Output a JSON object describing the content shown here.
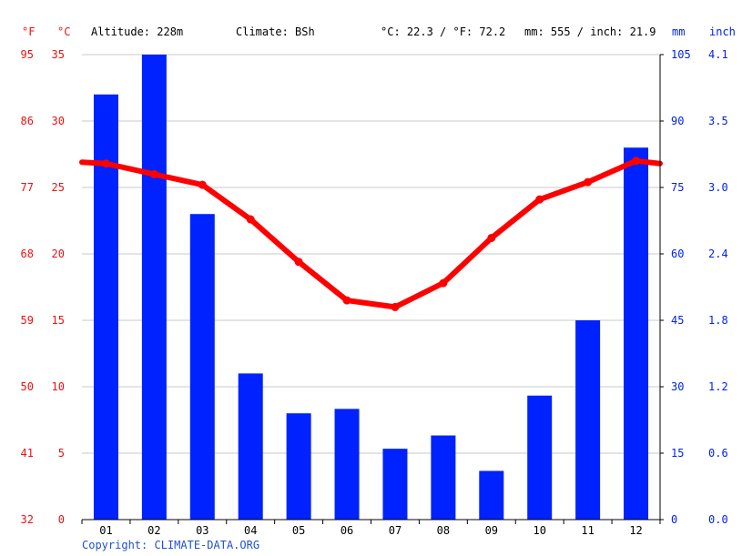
{
  "header": {
    "unit_f": "°F",
    "unit_c": "°C",
    "altitude": "Altitude: 228m",
    "climate": "Climate: BSh",
    "temp_avg": "°C: 22.3 / °F: 72.2",
    "precip_total": "mm: 555 / inch: 21.9",
    "unit_mm": "mm",
    "unit_inch": "inch"
  },
  "footer": {
    "copyright": "Copyright: CLIMATE-DATA.ORG"
  },
  "colors": {
    "temperature": "#ff0000",
    "precipitation": "#0022ff",
    "grid": "#c8c8c8",
    "left_axis_text": "#ee1111",
    "right_axis_text": "#0022ee"
  },
  "chart_data": {
    "type": "bar+line",
    "categories": [
      "01",
      "02",
      "03",
      "04",
      "05",
      "06",
      "07",
      "08",
      "09",
      "10",
      "11",
      "12"
    ],
    "series": [
      {
        "name": "Precipitation (mm)",
        "type": "bar",
        "axis": "right",
        "values": [
          96,
          105,
          69,
          33,
          24,
          25,
          16,
          19,
          11,
          28,
          45,
          84
        ]
      },
      {
        "name": "Temperature (°C)",
        "type": "line",
        "axis": "left",
        "values": [
          26.8,
          26.0,
          25.2,
          22.6,
          19.4,
          16.5,
          16.0,
          17.8,
          21.2,
          24.1,
          25.4,
          27.0
        ]
      }
    ],
    "left_axis_c": {
      "ticks": [
        "0",
        "5",
        "10",
        "15",
        "20",
        "25",
        "30",
        "35"
      ],
      "ylim": [
        0,
        35
      ]
    },
    "left_axis_f": {
      "ticks": [
        "32",
        "41",
        "50",
        "59",
        "68",
        "77",
        "86",
        "95"
      ]
    },
    "right_axis_mm": {
      "ticks": [
        "0",
        "15",
        "30",
        "45",
        "60",
        "75",
        "90",
        "105"
      ],
      "ylim": [
        0,
        105
      ]
    },
    "right_axis_inch": {
      "ticks": [
        "0.0",
        "0.6",
        "1.2",
        "1.8",
        "2.4",
        "3.0",
        "3.5",
        "4.1"
      ]
    },
    "temp_line_edges": {
      "left": 26.9,
      "right": 26.8
    },
    "grid": true
  }
}
